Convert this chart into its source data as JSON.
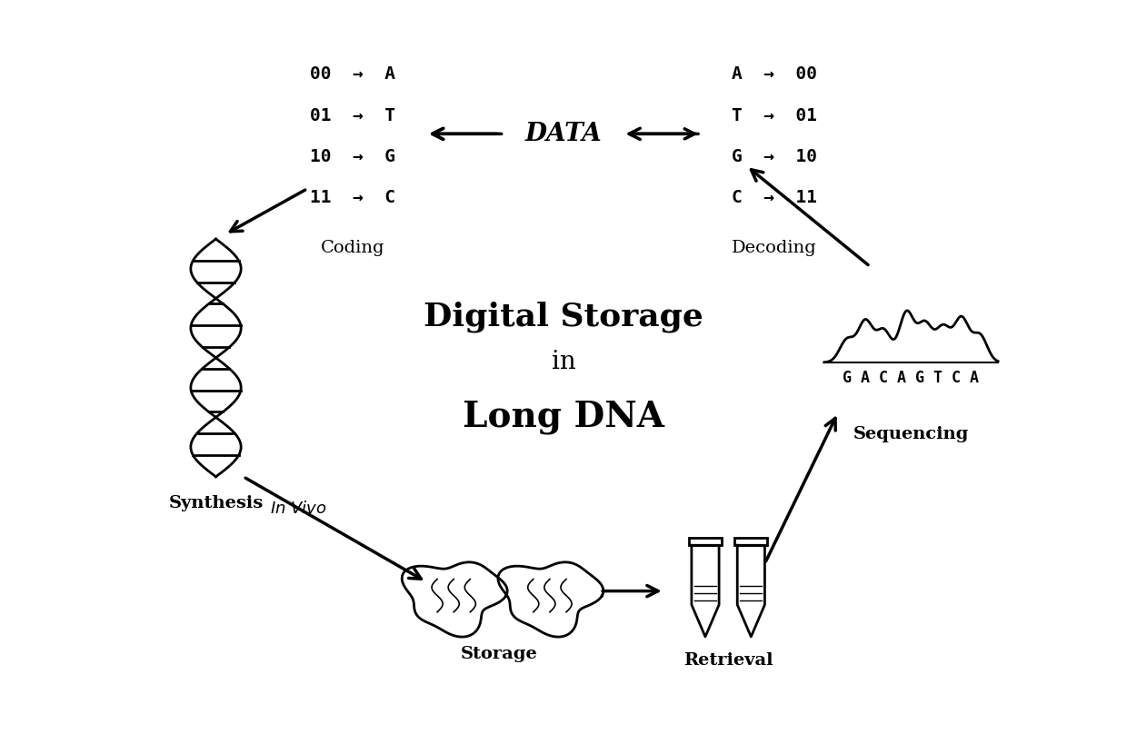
{
  "title_line1": "Digital Storage",
  "title_line2": "in",
  "title_line3": "Long DNA",
  "coding_title": "Coding",
  "decoding_title": "Decoding",
  "coding_lines": [
    "00  →  A",
    "01  →  T",
    "10  →  G",
    "11  →  C"
  ],
  "decoding_lines": [
    "A  →  00",
    "T  →  01",
    "G  →  10",
    "C  →  11"
  ],
  "data_label": "DATA",
  "labels": {
    "synthesis": "Synthesis",
    "storage": "Storage",
    "retrieval": "Retrieval",
    "sequencing": "Sequencing",
    "in_vivo": "In Vivo"
  },
  "bg_color": "#ffffff",
  "fg_color": "#000000"
}
